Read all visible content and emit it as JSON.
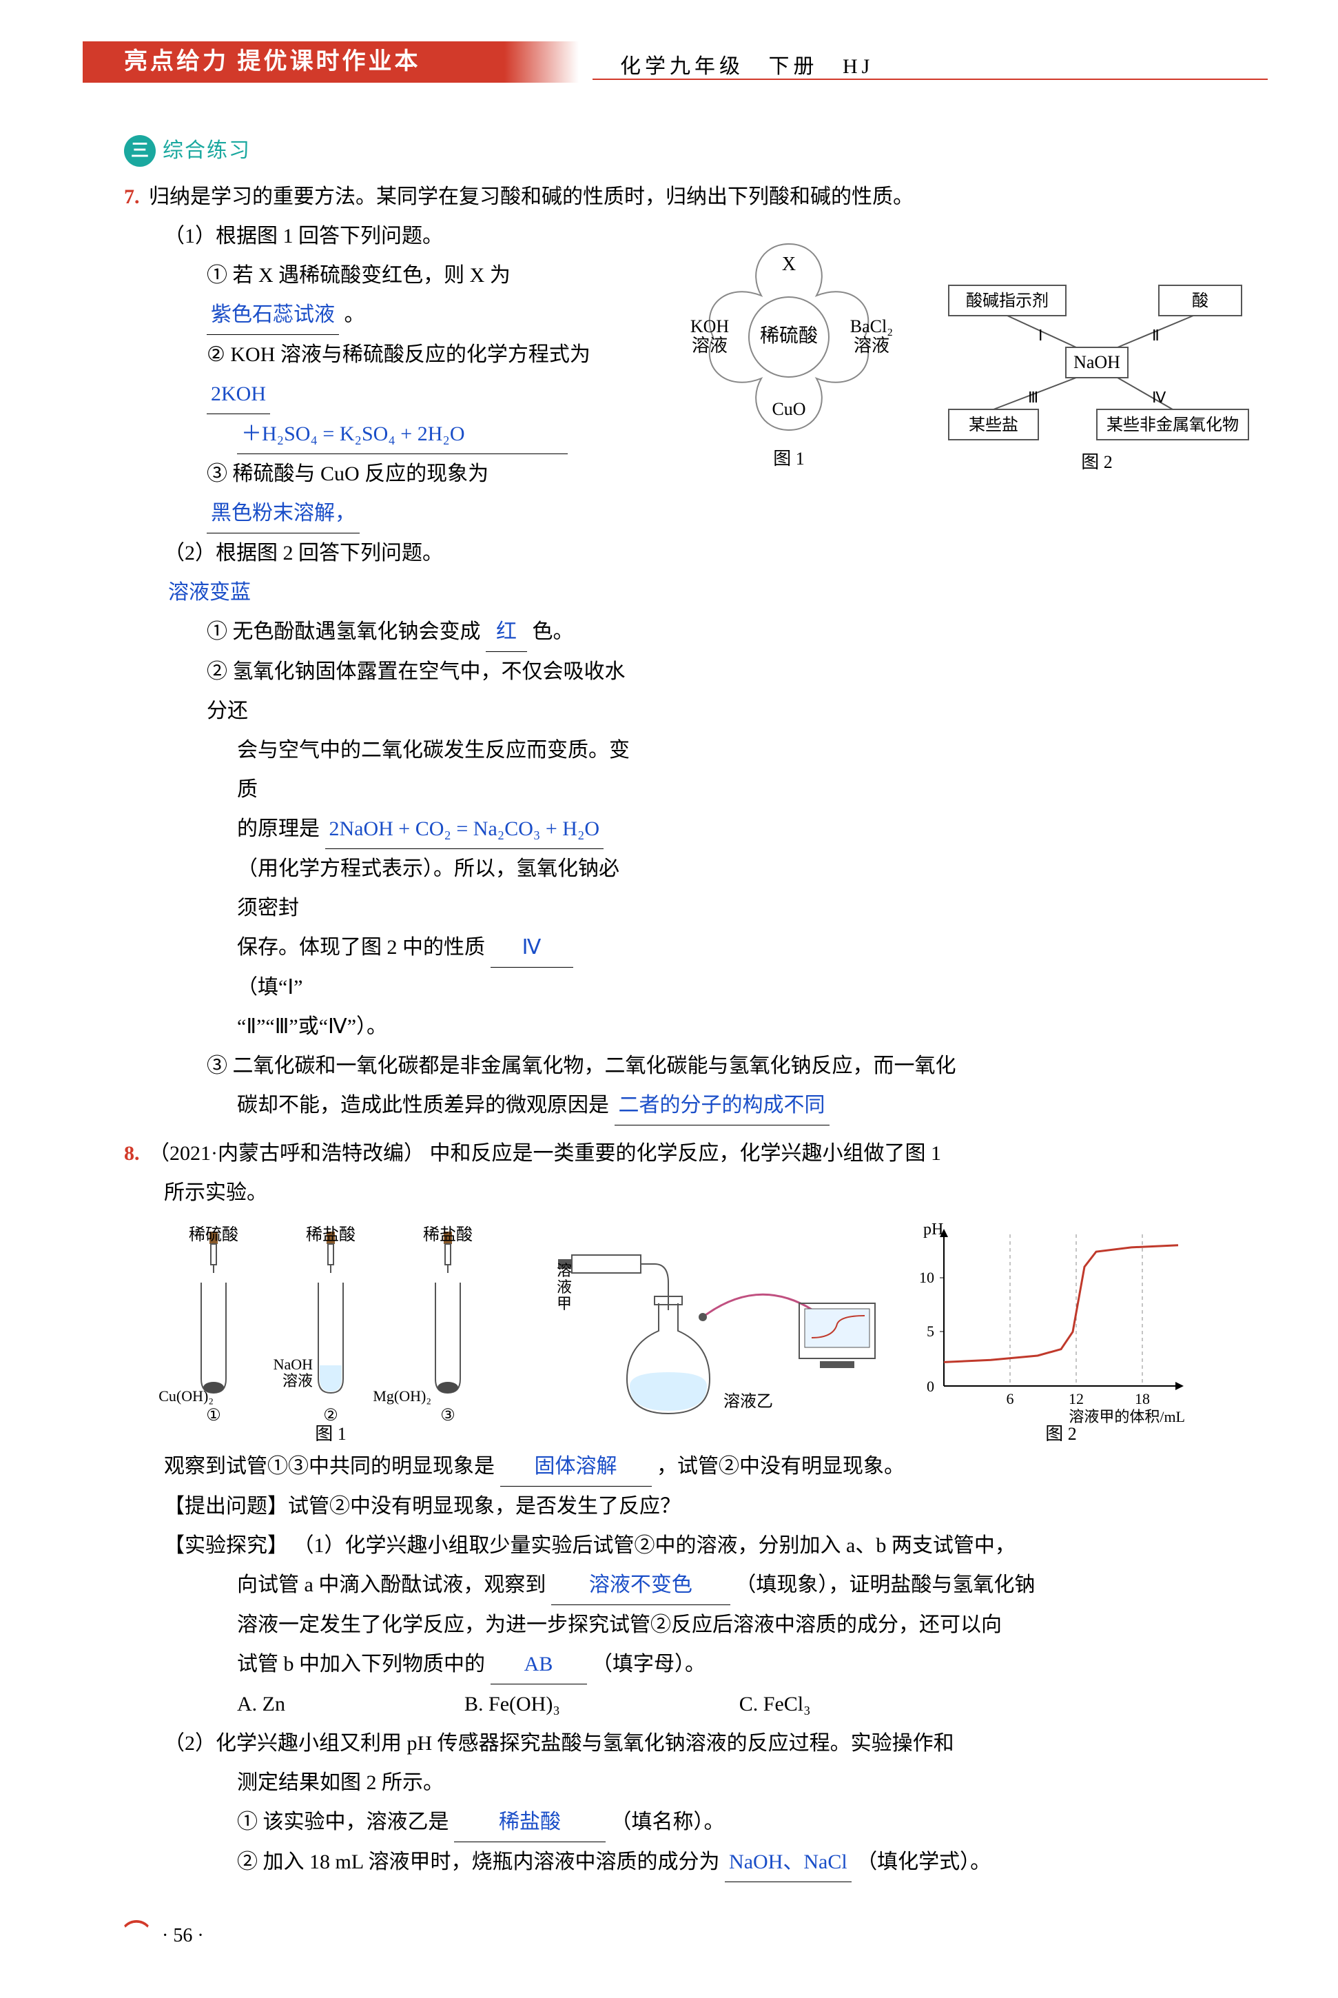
{
  "header": {
    "brand": "亮点给力  提优课时作业本",
    "subject": "化学九年级",
    "volume": "下册",
    "series": "HJ"
  },
  "section": {
    "badge": "三",
    "title": "综合练习"
  },
  "colors": {
    "accent_red": "#d23a2a",
    "accent_teal": "#1aa89f",
    "answer_blue": "#1a4ec8",
    "line_gray": "#888888",
    "ph_curve": "#c0392b",
    "fill_light": "#d9f0ff",
    "fill_dark": "#4a4a4a"
  },
  "q7": {
    "num": "7.",
    "stem": "归纳是学习的重要方法。某同学在复习酸和碱的性质时，归纳出下列酸和碱的性质。",
    "p1": {
      "head": "（1）根据图 1 回答下列问题。",
      "i1_pre": "① 若 X 遇稀硫酸变红色，则 X 为",
      "i1_ans": "紫色石蕊试液",
      "i1_post": "。",
      "i2_pre": "② KOH 溶液与稀硫酸反应的化学方程式为",
      "i2_ans1": "2KOH",
      "i2_ans2": "＋H₂SO₄ = K₂SO₄ + 2H₂O",
      "i3_pre": "③ 稀硫酸与 CuO 反应的现象为",
      "i3_ans": "黑色粉末溶解，",
      "i3_ans2": "溶液变蓝"
    },
    "p2": {
      "head": "（2）根据图 2 回答下列问题。",
      "i1_pre": "① 无色酚酞遇氢氧化钠会变成",
      "i1_ans": "红",
      "i1_post": "色。",
      "i2_a": "② 氢氧化钠固体露置在空气中，不仅会吸收水分还",
      "i2_b": "会与空气中的二氧化碳发生反应而变质。变质",
      "i2_c": "的原理是",
      "i2_ans": "2NaOH + CO₂ = Na₂CO₃ + H₂O",
      "i2_d": "（用化学方程式表示）。所以，氢氧化钠必须密封",
      "i2_e": "保存。体现了图 2 中的性质",
      "i2_e_ans": "Ⅳ",
      "i2_f": "（填“Ⅰ”",
      "i2_g": "“Ⅱ”“Ⅲ”或“Ⅳ”）。",
      "i3_a": "③ 二氧化碳和一氧化碳都是非金属氧化物，二氧化碳能与氢氧化钠反应，而一氧化",
      "i3_b": "碳却不能，造成此性质差异的微观原因是",
      "i3_ans": "二者的分子的构成不同"
    },
    "fig1": {
      "caption": "图 1",
      "center": "稀硫酸",
      "top": "X",
      "left_a": "KOH",
      "left_b": "溶液",
      "right_a": "BaCl₂",
      "right_b": "溶液",
      "bottom": "CuO"
    },
    "fig2": {
      "caption": "图 2",
      "center": "NaOH",
      "tl": "酸碱指示剂",
      "tr": "酸",
      "bl": "某些盐",
      "br": "某些非金属氧化物",
      "r1": "Ⅰ",
      "r2": "Ⅱ",
      "r3": "Ⅲ",
      "r4": "Ⅳ"
    }
  },
  "q8": {
    "num": "8.",
    "src": "（2021·内蒙古呼和浩特改编）",
    "stem": "中和反应是一类重要的化学反应，化学兴趣小组做了图 1",
    "stem2": "所示实验。",
    "fig1": {
      "caption": "图 1",
      "t1_top": "稀硫酸",
      "t1_bot": "Cu(OH)₂",
      "t1_num": "①",
      "t2_top": "稀盐酸",
      "t2_mid": "NaOH",
      "t2_mid2": "溶液",
      "t2_num": "②",
      "t3_top": "稀盐酸",
      "t3_bot": "Mg(OH)₂",
      "t3_num": "③"
    },
    "fig_exp": {
      "syr": "溶液甲",
      "flask": "溶液乙"
    },
    "fig2": {
      "caption": "图 2",
      "ylabel": "pH",
      "yticks": [
        "10",
        "5",
        "0"
      ],
      "xticks": [
        "6",
        "12",
        "18"
      ],
      "xlabel": "溶液甲的体积/mL",
      "ylim": [
        0,
        14
      ],
      "xlim": [
        0,
        20
      ],
      "curve": [
        [
          0,
          2.2
        ],
        [
          4,
          2.4
        ],
        [
          8,
          2.8
        ],
        [
          10,
          3.4
        ],
        [
          11,
          5
        ],
        [
          11.5,
          8
        ],
        [
          12,
          11
        ],
        [
          13,
          12.4
        ],
        [
          16,
          12.8
        ],
        [
          20,
          13
        ]
      ]
    },
    "obs_pre": "观察到试管①③中共同的明显现象是",
    "obs_ans": "固体溶解",
    "obs_post": "，试管②中没有明显现象。",
    "ask": "【提出问题】试管②中没有明显现象，是否发生了反应？",
    "exp_head": "【实验探究】",
    "p1_a": "（1）化学兴趣小组取少量实验后试管②中的溶液，分别加入 a、b 两支试管中，",
    "p1_b": "向试管 a 中滴入酚酞试液，观察到",
    "p1_ans1": "溶液不变色",
    "p1_c": "（填现象），证明盐酸与氢氧化钠",
    "p1_d": "溶液一定发生了化学反应，为进一步探究试管②反应后溶液中溶质的成分，还可以向",
    "p1_e": "试管 b 中加入下列物质中的",
    "p1_ans2": "AB",
    "p1_f": "（填字母）。",
    "opts": {
      "A": "A. Zn",
      "B": "B. Fe(OH)₃",
      "C": "C. FeCl₃"
    },
    "p2_a": "（2）化学兴趣小组又利用 pH 传感器探究盐酸与氢氧化钠溶液的反应过程。实验操作和",
    "p2_b": "测定结果如图 2 所示。",
    "p2_i1_pre": "① 该实验中，溶液乙是",
    "p2_i1_ans": "稀盐酸",
    "p2_i1_post": "（填名称）。",
    "p2_i2_pre": "② 加入 18 mL 溶液甲时，烧瓶内溶液中溶质的成分为",
    "p2_i2_ans": "NaOH、NaCl",
    "p2_i2_post": "（填化学式）。"
  },
  "page": "· 56 ·"
}
